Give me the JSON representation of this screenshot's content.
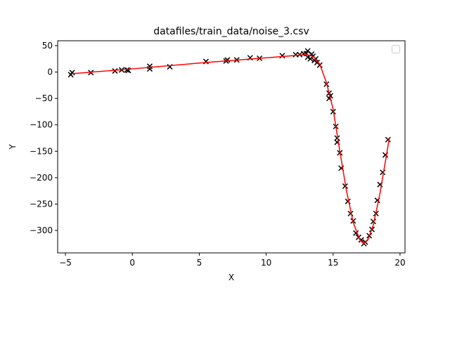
{
  "chart_data": {
    "type": "scatter-line",
    "title": "datafiles/train_data/noise_3.csv",
    "x_label": "X",
    "y_label": "Y",
    "xlim": [
      -5.58,
      20.37
    ],
    "ylim": [
      -342.5,
      59.3
    ],
    "xticks": [
      {
        "value": -5,
        "label": "−5"
      },
      0,
      5,
      10,
      15,
      20
    ],
    "yticks": [
      50,
      0,
      {
        "value": -50,
        "label": "−50"
      },
      {
        "value": -100,
        "label": "−100"
      },
      {
        "value": -150,
        "label": "−150"
      },
      {
        "value": -200,
        "label": "−200"
      },
      {
        "value": -250,
        "label": "−250"
      },
      {
        "value": -300,
        "label": "−300"
      }
    ],
    "series": [
      {
        "kind": "scatter",
        "color": "#000000",
        "x": [
          -4.5,
          -4.6,
          -3.1,
          -1.3,
          -0.8,
          -0.4,
          -0.3,
          1.3,
          1.3,
          2.8,
          5.5,
          7.0,
          7.1,
          7.8,
          8.8,
          9.5,
          11.2,
          12.2,
          12.5,
          12.8,
          13.0,
          13.1,
          13.1,
          13.3,
          13.4,
          13.5,
          13.6,
          13.7,
          13.8,
          14.0,
          14.5,
          14.7,
          14.7,
          14.8,
          15.0,
          15.2,
          15.3,
          15.3,
          15.5,
          15.6,
          15.9,
          16.1,
          16.3,
          16.5,
          16.7,
          16.9,
          17.1,
          17.3,
          17.4,
          17.7,
          17.9,
          18.0,
          18.2,
          18.3,
          18.5,
          18.7,
          18.9,
          19.1
        ],
        "values": [
          -1,
          -5,
          -1,
          2,
          4,
          4,
          3,
          11,
          6,
          10,
          20,
          21,
          23,
          23,
          27,
          26,
          31,
          33,
          33,
          35,
          35,
          40,
          28,
          25,
          34,
          30,
          22,
          25,
          18,
          13,
          -23,
          -40,
          -50,
          -45,
          -75,
          -103,
          -125,
          -133,
          -153,
          -182,
          -216,
          -245,
          -268,
          -282,
          -305,
          -313,
          -318,
          -325,
          -322,
          -310,
          -298,
          -283,
          -268,
          -243,
          -213,
          -190,
          -157,
          -128
        ]
      },
      {
        "kind": "line",
        "color": "#ff0000",
        "x": [
          -4.5,
          0,
          5,
          10,
          12,
          13,
          13.5,
          14,
          14.5,
          15,
          15.5,
          16,
          16.5,
          17,
          17.3,
          17.6,
          18,
          18.5,
          19,
          19.2
        ],
        "values": [
          -3,
          6,
          17,
          27,
          31,
          33,
          30,
          15,
          -20,
          -70,
          -150,
          -225,
          -285,
          -318,
          -325,
          -318,
          -290,
          -230,
          -155,
          -125
        ]
      }
    ]
  }
}
